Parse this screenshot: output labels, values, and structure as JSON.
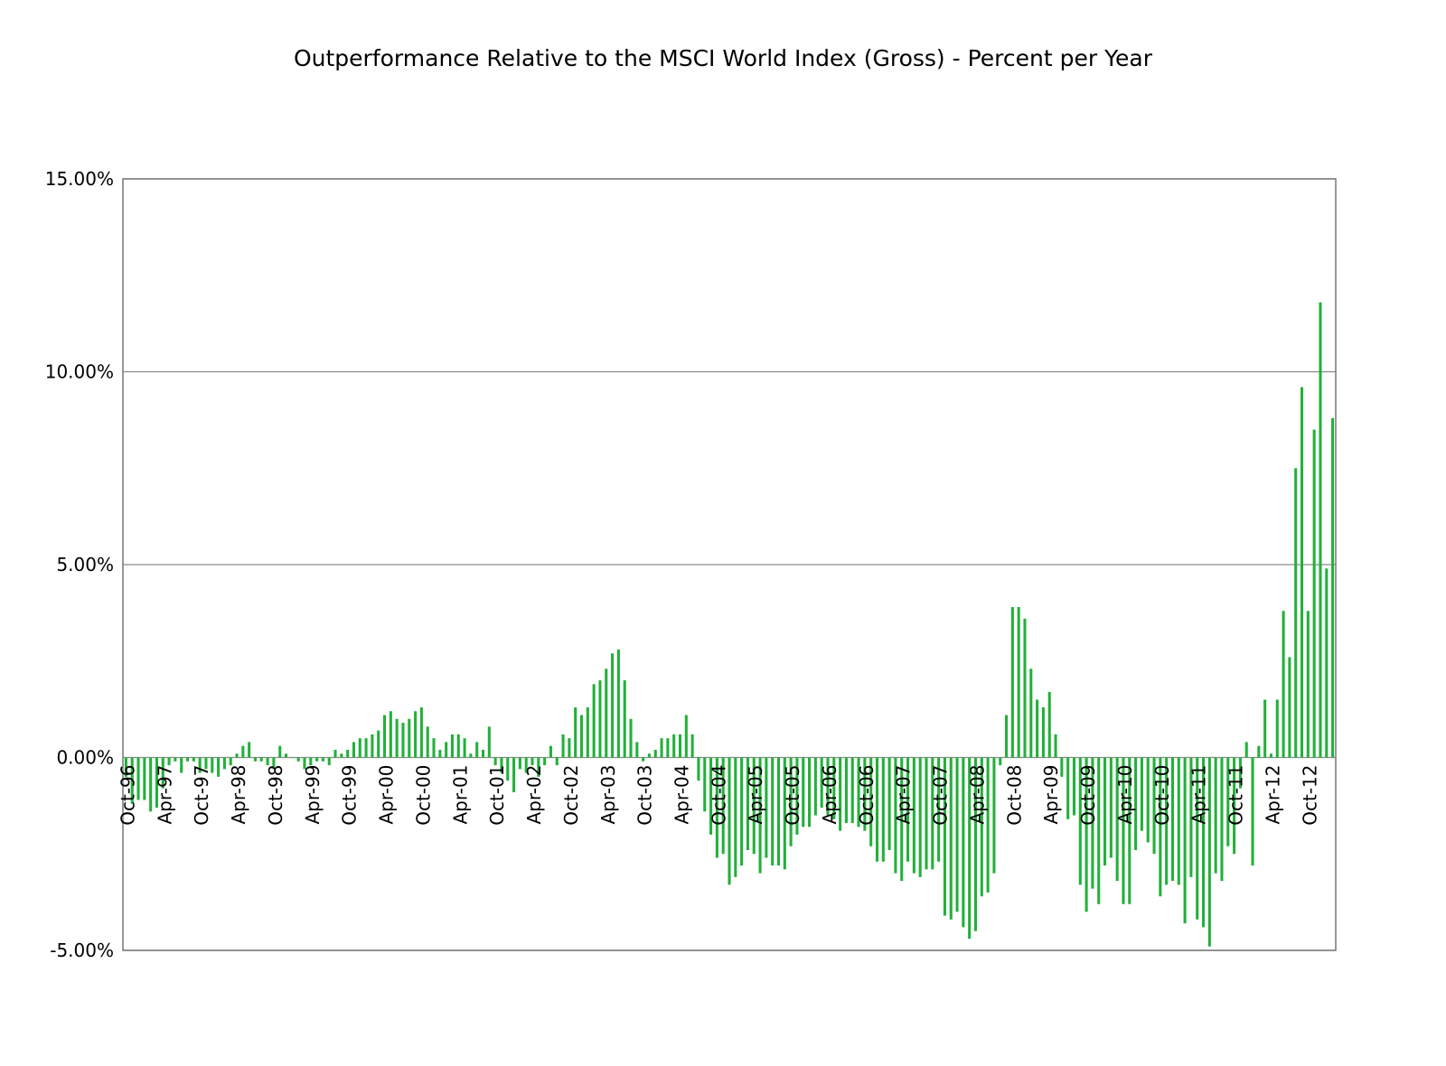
{
  "chart_data": {
    "type": "bar",
    "title": "Outperformance Relative to the MSCI World Index (Gross) - Percent per Year",
    "xlabel": "",
    "ylabel": "",
    "ylim": [
      -5,
      15
    ],
    "y_ticks": [
      "15.00%",
      "10.00%",
      "5.00%",
      "0.00%",
      "-5.00%"
    ],
    "y_tick_values": [
      15,
      10,
      5,
      0,
      -5
    ],
    "grid": "horizontal",
    "legend": "none",
    "bar_color": "#22b03a",
    "start_month": "Oct-96",
    "x_tick_labels": [
      "Oct-96",
      "Apr-97",
      "Oct-97",
      "Apr-98",
      "Oct-98",
      "Apr-99",
      "Oct-99",
      "Apr-00",
      "Oct-00",
      "Apr-01",
      "Oct-01",
      "Apr-02",
      "Oct-02",
      "Apr-03",
      "Oct-03",
      "Apr-04",
      "Oct-04",
      "Apr-05",
      "Oct-05",
      "Apr-06",
      "Oct-06",
      "Apr-07",
      "Oct-07",
      "Apr-08",
      "Oct-08",
      "Apr-09",
      "Oct-09",
      "Apr-10",
      "Oct-10",
      "Apr-11",
      "Oct-11",
      "Apr-12",
      "Oct-12"
    ],
    "values": [
      -0.5,
      -1.2,
      -1.1,
      -1.1,
      -1.4,
      -1.3,
      -0.8,
      -0.2,
      -0.1,
      -0.4,
      -0.1,
      -0.1,
      -0.4,
      -0.3,
      -0.4,
      -0.5,
      -0.3,
      -0.2,
      0.1,
      0.3,
      0.4,
      -0.1,
      -0.1,
      -0.2,
      -0.3,
      0.3,
      0.1,
      0.0,
      -0.1,
      -0.3,
      -0.2,
      -0.1,
      -0.1,
      -0.2,
      0.2,
      0.1,
      0.2,
      0.4,
      0.5,
      0.5,
      0.6,
      0.7,
      1.1,
      1.2,
      1.0,
      0.9,
      1.0,
      1.2,
      1.3,
      0.8,
      0.5,
      0.2,
      0.4,
      0.6,
      0.6,
      0.5,
      0.1,
      0.4,
      0.2,
      0.8,
      -0.2,
      -0.4,
      -0.6,
      -0.9,
      -0.3,
      -0.4,
      -0.2,
      -0.5,
      -0.2,
      0.3,
      -0.2,
      0.6,
      0.5,
      1.3,
      1.1,
      1.3,
      1.9,
      2.0,
      2.3,
      2.7,
      2.8,
      2.0,
      1.0,
      0.4,
      -0.1,
      0.1,
      0.2,
      0.5,
      0.5,
      0.6,
      0.6,
      1.1,
      0.6,
      -0.6,
      -1.4,
      -2.0,
      -2.6,
      -2.5,
      -3.3,
      -3.1,
      -2.8,
      -2.4,
      -2.5,
      -3.0,
      -2.6,
      -2.8,
      -2.8,
      -2.9,
      -2.3,
      -2.0,
      -1.8,
      -1.8,
      -1.5,
      -1.3,
      -1.5,
      -1.6,
      -1.9,
      -1.7,
      -1.7,
      -1.8,
      -1.9,
      -2.3,
      -2.7,
      -2.7,
      -2.4,
      -3.0,
      -3.2,
      -2.7,
      -3.0,
      -3.1,
      -2.9,
      -2.9,
      -2.7,
      -4.1,
      -4.2,
      -4.0,
      -4.4,
      -4.7,
      -4.5,
      -3.6,
      -3.5,
      -3.0,
      -0.2,
      1.1,
      3.9,
      3.9,
      3.6,
      2.3,
      1.5,
      1.3,
      1.7,
      0.6,
      -0.5,
      -1.6,
      -1.5,
      -3.3,
      -4.0,
      -3.4,
      -3.8,
      -2.8,
      -2.6,
      -3.2,
      -3.8,
      -3.8,
      -2.4,
      -1.9,
      -2.2,
      -2.5,
      -3.6,
      -3.3,
      -3.2,
      -3.3,
      -4.3,
      -3.1,
      -4.2,
      -4.4,
      -4.9,
      -3.0,
      -3.2,
      -2.3,
      -2.5,
      -0.8,
      0.4,
      -2.8,
      0.3,
      1.5,
      0.1,
      1.5,
      3.8,
      2.6,
      7.5,
      9.6,
      3.8,
      8.5,
      11.8,
      4.9,
      8.8
    ]
  }
}
